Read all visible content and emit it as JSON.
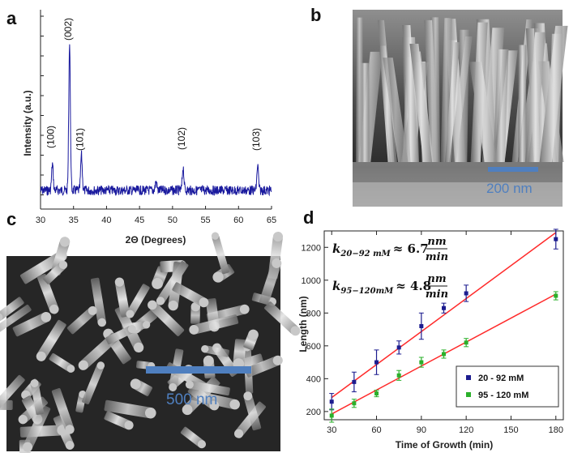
{
  "panels": {
    "a": {
      "letter": "a",
      "ylabel": "Intensity (a.u.)",
      "xlabel": "2Θ (Degrees)",
      "peaks": [
        "(002)",
        "(100)",
        "(101)",
        "(102)",
        "(103)"
      ]
    },
    "b": {
      "letter": "b",
      "scale_bar": "200 nm"
    },
    "c": {
      "letter": "c",
      "scale_bar": "500 nm"
    },
    "d": {
      "letter": "d",
      "eq1_lhs": "k",
      "eq1_sub": "20−92 mM",
      "eq1_val": "≈ 6.7",
      "eq2_lhs": "k",
      "eq2_sub": "95−120mM",
      "eq2_val": "≈ 4.8",
      "unit_num": "nm",
      "unit_den": "min",
      "legend": [
        "20 - 92 mM",
        "95 - 120 mM"
      ]
    }
  },
  "colors": {
    "xrd_line": "#1a1a9e",
    "series1": "#1c1c8f",
    "series2": "#2bb02b",
    "fit": "#ff2a2a",
    "scale_bar": "#4f7fbf"
  },
  "chart_data": [
    {
      "type": "line",
      "panel": "a",
      "xlabel": "2Θ (Degrees)",
      "ylabel": "Intensity (a.u.)",
      "xlim": [
        30,
        65
      ],
      "xticks": [
        30,
        35,
        40,
        45,
        50,
        55,
        60,
        65
      ],
      "peaks": [
        {
          "label": "(100)",
          "x": 31.8,
          "height": 0.18
        },
        {
          "label": "(002)",
          "x": 34.4,
          "height": 1.0
        },
        {
          "label": "(101)",
          "x": 36.2,
          "height": 0.24
        },
        {
          "label": "(102)",
          "x": 47.5,
          "height": 0.06
        },
        {
          "label": "(102)",
          "x": 51.6,
          "height": 0.16
        },
        {
          "label": "(103)",
          "x": 62.9,
          "height": 0.17
        }
      ]
    },
    {
      "type": "scatter",
      "panel": "d",
      "xlabel": "Time of Growth (min)",
      "ylabel": "Length (nm)",
      "xlim": [
        25,
        185
      ],
      "ylim": [
        150,
        1300
      ],
      "xticks": [
        30,
        60,
        90,
        120,
        150,
        180
      ],
      "yticks": [
        200,
        400,
        600,
        800,
        1000,
        1200
      ],
      "series": [
        {
          "name": "20 - 92 mM",
          "x": [
            30,
            45,
            60,
            75,
            90,
            105,
            120,
            180
          ],
          "y": [
            260,
            380,
            500,
            590,
            720,
            830,
            920,
            1250
          ],
          "err": [
            50,
            60,
            75,
            40,
            80,
            30,
            50,
            60
          ],
          "fit": {
            "x": [
              30,
              180
            ],
            "y": [
              285,
              1290
            ]
          }
        },
        {
          "name": "95 - 120 mM",
          "x": [
            30,
            45,
            60,
            75,
            90,
            105,
            120,
            180
          ],
          "y": [
            175,
            250,
            310,
            420,
            500,
            550,
            620,
            905
          ],
          "err": [
            40,
            25,
            20,
            30,
            30,
            25,
            25,
            25
          ],
          "fit": {
            "x": [
              30,
              180
            ],
            "y": [
              185,
              915
            ]
          }
        }
      ]
    }
  ]
}
